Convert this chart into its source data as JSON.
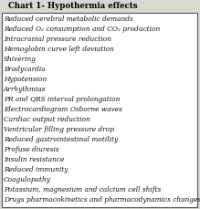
{
  "title": "Chart 1- Hypothermia effects",
  "items": [
    "Reduced cerebral metabolic demands",
    "Reduced O₂ consumption and CO₂ production",
    "Intracranial pressure reduction",
    "Hemoglobin curve left deviation",
    "Shivering",
    "Bradycardia",
    "Hypotension",
    "Arrhythmias",
    "PR and QRS interval prolongation",
    "Electrocardiogram Osborne waves",
    "Cardiac output reduction",
    "Ventricular filling pressure drop",
    "Reduced gastrointestinal motility",
    "Profuse diuresis",
    "Insulin resistance",
    "Reduced immunity",
    "Coagulopathy",
    "Potassium, magnesium and calcium cell shifts",
    "Drugs pharmacokinetics and pharmacodynamics changes"
  ],
  "background_color": "#d8d8d0",
  "box_color": "#ffffff",
  "border_color": "#555555",
  "title_fontsize": 6.2,
  "item_fontsize": 5.3,
  "title_color": "#000000",
  "item_color": "#111111",
  "title_font": "serif",
  "item_font": "serif"
}
